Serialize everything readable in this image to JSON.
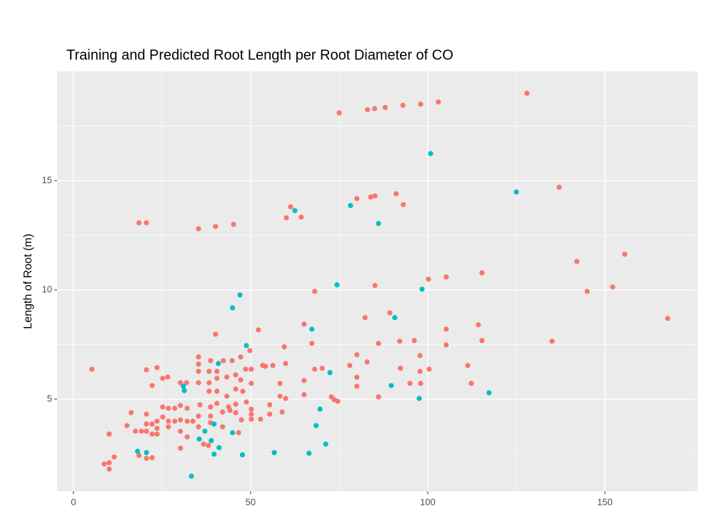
{
  "chart_data": {
    "type": "scatter",
    "title": "Training and Predicted Root Length per Root Diameter of CO",
    "y_label": "Length of Root (m)",
    "xlim": [
      -4.6,
      176.2
    ],
    "ylim": [
      0.78,
      20.0
    ],
    "xticks": [
      0,
      50,
      100,
      150
    ],
    "yticks": [
      5,
      10,
      15
    ],
    "grid": true,
    "series": [
      {
        "color": "#f8766d",
        "x": [
          75,
          83,
          85,
          88,
          93,
          98,
          103,
          128,
          18.5,
          20.6,
          35.3,
          40.1,
          45.2,
          60.1,
          61.3,
          64.3,
          80.0,
          83.9,
          85.1,
          91.1,
          93.1,
          137.1,
          142.1,
          145.0,
          152.2,
          155.6,
          167.7,
          135.1,
          100.2,
          105.2,
          115.3,
          85.1,
          68.1,
          82.3,
          89.3,
          92.1,
          96.2,
          97.8,
          100.4,
          97.8,
          92.3,
          86.1,
          80.0,
          80.0,
          80.0,
          82.9,
          78.0,
          86.1,
          95.0,
          98.0,
          105.2,
          105.2,
          114.3,
          115.3,
          111.3,
          112.3,
          65.1,
          67.3,
          68.1,
          70.2,
          65.1,
          65.1,
          72.8,
          73.6,
          74.6,
          59.5,
          59.9,
          58.3,
          58.3,
          59.9,
          58.9,
          40.1,
          52.2,
          49.8,
          48.6,
          50.2,
          53.4,
          54.2,
          56.3,
          44.8,
          47.2,
          42.3,
          38.7,
          35.3,
          35.3,
          35.3,
          38.3,
          40.5,
          40.5,
          38.3,
          38.3,
          35.3,
          31.9,
          30.2,
          40.5,
          43.3,
          45.8,
          47.2,
          45.8,
          50.2,
          47.8,
          43.3,
          40.5,
          43.8,
          45.8,
          48.8,
          50.2,
          50.2,
          50.2,
          52.8,
          55.4,
          55.4,
          45.8,
          44.2,
          42.1,
          38.7,
          38.7,
          38.7,
          35.7,
          35.3,
          35.3,
          32.1,
          32.1,
          32.1,
          30.2,
          30.2,
          30.2,
          30.2,
          28.6,
          28.6,
          26.8,
          26.8,
          26.8,
          25.2,
          25.2,
          23.6,
          23.6,
          23.6,
          22.2,
          22.2,
          20.6,
          20.6,
          20.6,
          19.2,
          17.5,
          16.3,
          15.1,
          20.6,
          22.2,
          18.5,
          23.6,
          22.2,
          25.2,
          26.6,
          20.6,
          5.2,
          10.1,
          11.5,
          8.7,
          10.1,
          10.1,
          33.7,
          36.7,
          38.1,
          46.6,
          47.4,
          42.1
        ],
        "values": [
          18.1,
          18.25,
          18.3,
          18.35,
          18.45,
          18.5,
          18.6,
          19.0,
          13.07,
          13.07,
          12.8,
          12.9,
          13.0,
          13.3,
          13.8,
          13.33,
          14.18,
          14.25,
          14.3,
          14.4,
          13.9,
          14.7,
          11.3,
          9.93,
          10.13,
          11.63,
          8.69,
          7.65,
          10.49,
          10.59,
          10.78,
          10.2,
          9.93,
          8.73,
          8.95,
          7.65,
          7.68,
          6.99,
          6.37,
          6.27,
          6.41,
          7.55,
          7.03,
          6.0,
          5.59,
          6.7,
          6.54,
          5.1,
          5.72,
          5.72,
          8.2,
          7.48,
          8.4,
          7.68,
          6.54,
          5.72,
          8.43,
          7.55,
          6.37,
          6.41,
          5.85,
          5.2,
          5.1,
          4.97,
          4.9,
          7.39,
          6.63,
          5.72,
          5.13,
          5.03,
          4.41,
          7.97,
          8.17,
          7.22,
          6.37,
          6.37,
          6.54,
          6.5,
          6.54,
          6.76,
          6.93,
          6.76,
          6.76,
          6.93,
          6.6,
          6.27,
          6.27,
          6.27,
          5.95,
          5.75,
          5.36,
          5.75,
          5.75,
          5.75,
          5.36,
          6.01,
          6.11,
          5.88,
          5.46,
          5.72,
          5.36,
          5.13,
          4.8,
          4.64,
          4.77,
          4.87,
          4.54,
          4.31,
          4.08,
          4.08,
          4.74,
          4.31,
          4.38,
          4.48,
          4.41,
          4.64,
          4.22,
          3.92,
          4.74,
          4.22,
          3.73,
          4.58,
          3.99,
          3.27,
          4.71,
          4.05,
          3.53,
          2.75,
          4.58,
          3.99,
          4.58,
          3.99,
          3.73,
          4.18,
          4.64,
          3.99,
          3.66,
          3.4,
          3.86,
          3.4,
          4.31,
          3.86,
          3.53,
          3.53,
          3.53,
          4.38,
          3.79,
          2.29,
          2.32,
          2.42,
          6.44,
          5.62,
          5.95,
          6.01,
          6.34,
          6.37,
          3.4,
          2.35,
          2.03,
          2.09,
          1.8,
          3.99,
          2.94,
          2.88,
          3.46,
          4.05,
          3.73
        ]
      },
      {
        "color": "#00bfc4",
        "x": [
          33.3,
          35.5,
          37.1,
          38.9,
          39.7,
          41.1,
          39.7,
          40.9,
          44.9,
          47.0,
          48.8,
          44.9,
          47.7,
          56.7,
          18.1,
          20.6,
          31.0,
          31.3,
          62.5,
          66.5,
          67.3,
          68.5,
          69.6,
          71.2,
          72.4,
          74.4,
          78.2,
          86.1,
          89.7,
          90.7,
          97.6,
          98.4,
          100.8,
          117.3,
          125.0
        ],
        "values": [
          1.47,
          3.17,
          3.53,
          3.1,
          2.48,
          2.78,
          3.86,
          6.63,
          9.18,
          9.77,
          7.45,
          3.46,
          2.45,
          2.55,
          2.61,
          2.55,
          5.59,
          5.39,
          13.63,
          2.52,
          8.2,
          3.79,
          4.54,
          2.94,
          6.21,
          10.23,
          13.86,
          13.04,
          5.62,
          8.73,
          5.03,
          10.03,
          16.24,
          5.29,
          14.48
        ]
      }
    ]
  }
}
